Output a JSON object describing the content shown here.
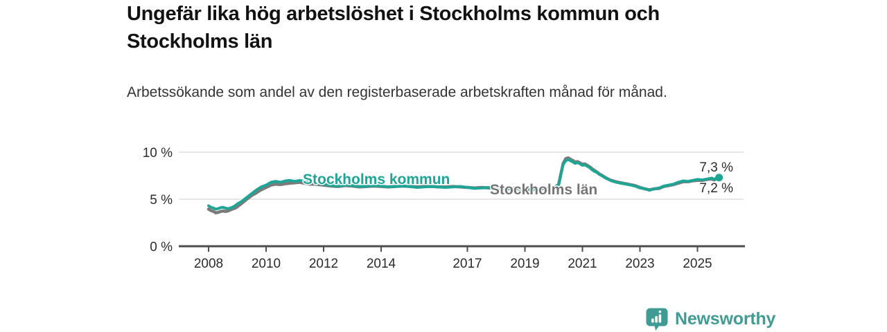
{
  "title": "Ungefär lika hög arbetslöshet i Stockholms kommun och Stockholms län",
  "subtitle": "Arbetssökande som andel av den registerbaserade arbetskraften månad för månad.",
  "footer": {
    "brand": "Newsworthy",
    "logo_icon": "bar-chart-bubble-icon",
    "brand_color": "#3f9b94"
  },
  "colors": {
    "kommun_line": "#1ea596",
    "lan_line": "#7b7b7b",
    "lan_label": "#757575",
    "grid": "#e3e3e3",
    "axis": "#4d4d4d",
    "text": "#2b2b2b",
    "title_text": "#121212",
    "subtitle_text": "#333333"
  },
  "chart_data": {
    "type": "line",
    "unit": "%",
    "grid": "horizontal",
    "legend_position": "inline-labels",
    "ylim": [
      0,
      10
    ],
    "xlim": [
      2006.95,
      2026.6
    ],
    "y_ticks": [
      {
        "label": "10 %",
        "value": 10
      },
      {
        "label": "5 %",
        "value": 5
      },
      {
        "label": "0 %",
        "value": 0
      }
    ],
    "x_ticks": [
      {
        "label": "2008",
        "value": 2008
      },
      {
        "label": "2010",
        "value": 2010
      },
      {
        "label": "2012",
        "value": 2012
      },
      {
        "label": "2014",
        "value": 2014
      },
      {
        "label": "2017",
        "value": 2017
      },
      {
        "label": "2019",
        "value": 2019
      },
      {
        "label": "2021",
        "value": 2021
      },
      {
        "label": "2023",
        "value": 2023
      },
      {
        "label": "2025",
        "value": 2025
      }
    ],
    "x": [
      2008,
      2008.08,
      2008.17,
      2008.25,
      2008.33,
      2008.42,
      2008.5,
      2008.58,
      2008.67,
      2008.75,
      2008.83,
      2008.92,
      2009,
      2009.17,
      2009.33,
      2009.5,
      2009.67,
      2009.83,
      2010,
      2010.17,
      2010.33,
      2010.5,
      2010.67,
      2010.83,
      2011,
      2011.17,
      2011.33,
      2011.5,
      2011.67,
      2011.83,
      2012,
      2012.25,
      2012.5,
      2012.75,
      2013,
      2013.25,
      2013.5,
      2013.75,
      2014,
      2014.25,
      2014.5,
      2014.75,
      2015,
      2015.25,
      2015.5,
      2015.75,
      2016,
      2016.25,
      2016.5,
      2016.75,
      2017,
      2017.25,
      2017.5,
      2017.75,
      2018,
      2018.25,
      2018.5,
      2018.75,
      2019,
      2019.25,
      2019.5,
      2019.75,
      2020,
      2020.17,
      2020.25,
      2020.33,
      2020.42,
      2020.5,
      2020.58,
      2020.67,
      2020.75,
      2020.83,
      2020.92,
      2021,
      2021.08,
      2021.17,
      2021.25,
      2021.33,
      2021.42,
      2021.5,
      2021.58,
      2021.67,
      2021.75,
      2021.83,
      2021.92,
      2022,
      2022.17,
      2022.33,
      2022.5,
      2022.67,
      2022.83,
      2023,
      2023.17,
      2023.33,
      2023.5,
      2023.67,
      2023.83,
      2024,
      2024.17,
      2024.33,
      2024.5,
      2024.67,
      2024.83,
      2025,
      2025.17,
      2025.33,
      2025.5,
      2025.58,
      2025.67,
      2025.75
    ],
    "series": [
      {
        "name": "Stockholms kommun",
        "color": "#1ea596",
        "end_label": "7,3 %",
        "end_value": 7.3,
        "values": [
          4.3,
          4.15,
          4.05,
          3.95,
          4.0,
          4.1,
          4.15,
          4.05,
          4.0,
          4.05,
          4.15,
          4.3,
          4.5,
          4.8,
          5.2,
          5.6,
          6.0,
          6.3,
          6.5,
          6.8,
          6.9,
          6.8,
          6.95,
          7.0,
          6.9,
          7.0,
          6.9,
          6.8,
          6.75,
          6.65,
          6.6,
          6.45,
          6.4,
          6.5,
          6.45,
          6.35,
          6.4,
          6.45,
          6.4,
          6.3,
          6.35,
          6.4,
          6.35,
          6.25,
          6.3,
          6.35,
          6.3,
          6.25,
          6.3,
          6.35,
          6.25,
          6.15,
          6.2,
          6.25,
          6.15,
          6.05,
          6.1,
          6.15,
          6.05,
          6.0,
          6.1,
          6.15,
          6.2,
          6.5,
          7.6,
          8.7,
          9.1,
          9.2,
          9.1,
          8.95,
          8.8,
          8.9,
          8.75,
          8.6,
          8.65,
          8.5,
          8.35,
          8.15,
          7.95,
          7.85,
          7.65,
          7.5,
          7.35,
          7.2,
          7.1,
          6.95,
          6.8,
          6.7,
          6.6,
          6.5,
          6.4,
          6.2,
          6.1,
          5.95,
          6.1,
          6.2,
          6.4,
          6.5,
          6.6,
          6.8,
          6.95,
          6.9,
          7.0,
          7.1,
          7.05,
          7.15,
          7.25,
          7.1,
          7.3,
          7.3
        ]
      },
      {
        "name": "Stockholms län",
        "color": "#7b7b7b",
        "end_label": "7,2 %",
        "end_value": 7.2,
        "values": [
          3.95,
          3.8,
          3.7,
          3.55,
          3.6,
          3.7,
          3.75,
          3.7,
          3.75,
          3.85,
          3.95,
          4.05,
          4.2,
          4.6,
          5.0,
          5.4,
          5.7,
          6.0,
          6.25,
          6.5,
          6.6,
          6.55,
          6.65,
          6.7,
          6.75,
          6.8,
          6.7,
          6.6,
          6.6,
          6.55,
          6.5,
          6.4,
          6.35,
          6.45,
          6.4,
          6.3,
          6.35,
          6.4,
          6.35,
          6.3,
          6.35,
          6.4,
          6.35,
          6.3,
          6.35,
          6.35,
          6.3,
          6.3,
          6.35,
          6.3,
          6.25,
          6.2,
          6.25,
          6.2,
          6.15,
          6.1,
          6.15,
          6.1,
          6.05,
          6.0,
          6.1,
          6.15,
          6.2,
          6.55,
          7.7,
          8.8,
          9.3,
          9.4,
          9.25,
          9.1,
          8.95,
          9.0,
          8.85,
          8.7,
          8.75,
          8.6,
          8.45,
          8.25,
          8.05,
          7.9,
          7.7,
          7.55,
          7.4,
          7.25,
          7.1,
          7.0,
          6.85,
          6.75,
          6.65,
          6.55,
          6.45,
          6.25,
          6.1,
          6.0,
          6.1,
          6.15,
          6.35,
          6.45,
          6.55,
          6.7,
          6.85,
          6.85,
          6.95,
          7.0,
          7.0,
          7.1,
          7.15,
          7.05,
          7.2,
          7.2
        ]
      }
    ]
  }
}
